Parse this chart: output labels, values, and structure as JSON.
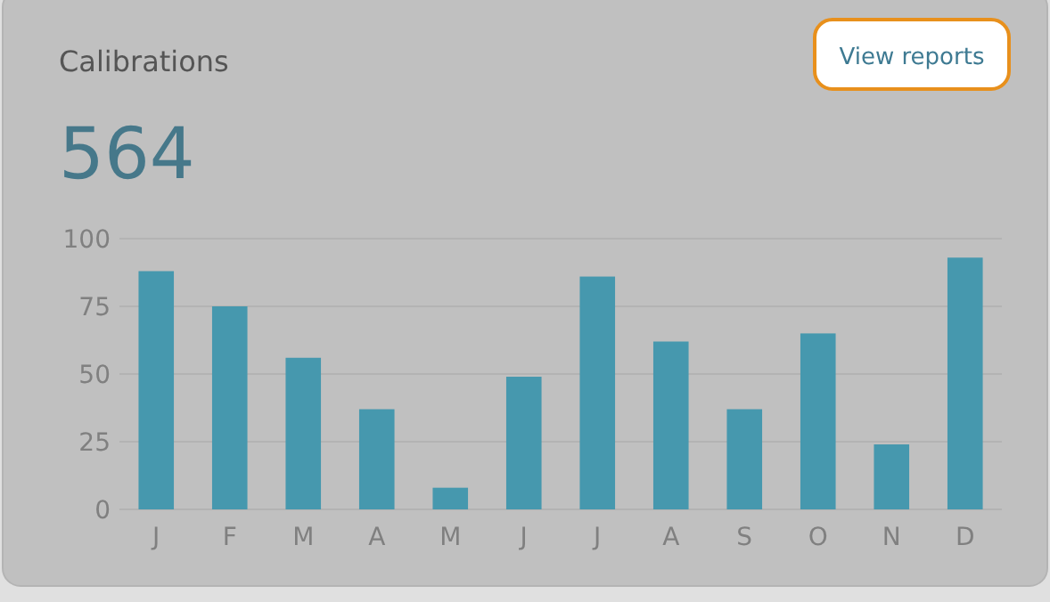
{
  "chart_data": {
    "type": "bar",
    "title": "Calibrations",
    "subtitle": "564",
    "annotations": [
      "View reports"
    ],
    "categories": [
      "J",
      "F",
      "M",
      "A",
      "M",
      "J",
      "J",
      "A",
      "S",
      "O",
      "N",
      "D"
    ],
    "values": [
      88,
      75,
      56,
      37,
      8,
      49,
      86,
      62,
      37,
      65,
      24,
      93
    ],
    "color": "#4698ae",
    "ylim": [
      0,
      100
    ],
    "yticks": [
      0,
      25,
      50,
      75,
      100
    ],
    "grid": "y"
  }
}
